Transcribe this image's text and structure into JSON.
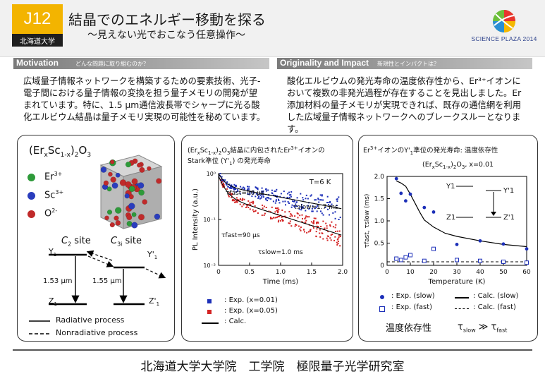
{
  "header": {
    "code": "J12",
    "org": "北海道大学",
    "title": "結晶でのエネルギー移動を探る",
    "subtitle": "〜見えない光でおこなう任意操作〜",
    "logo_text": "SCIENCE PLAZA 2014"
  },
  "motivation": {
    "title": "Motivation",
    "subtitle": "どんな問題に取り組むのか？",
    "lines": [
      "広域量子情報ネットワークを構築するための要素技術、光子-",
      "電子間における量子情報の変換を担う量子メモリの開発が望",
      "まれています。特に、1.5 µm通信波長帯でシャープに光る酸",
      "化エルビウム結晶は量子メモリ実現の可能性を秘めています。"
    ]
  },
  "originality": {
    "title": "Originality and Impact",
    "subtitle": "新規性とインパクトは？",
    "lines": [
      "酸化エルビウムの発光寿命の温度依存性から、Er³⁺イオンに",
      "おいて複数の非発光過程が存在することを見出しました。Er",
      "添加材料の量子メモリが実現できれば、既存の通信網を利用",
      "した広域量子情報ネットワークへのブレークスルーとなります。"
    ]
  },
  "panel1": {
    "formula": "(ErxSc1-x)2O3",
    "legend": [
      {
        "label": "Er3+",
        "color": "#2e9a3a"
      },
      {
        "label": "Sc3+",
        "color": "#2a3dbd"
      },
      {
        "label": "O2-",
        "color": "#c02a2a"
      }
    ],
    "site_c2": "C2 site",
    "site_c3i": "C3i site",
    "y1": "Y1",
    "z1": "Z1",
    "y1p": "Y'1",
    "z1p": "Z'1",
    "wl1": "1.53 µm",
    "wl2": "1.55 µm",
    "radiative": "Radiative process",
    "nonradiative": "Nonradiative process"
  },
  "panel2": {
    "title_line1": "(ErxSc1-x)2O3結晶に内包されたEr3+イオンの",
    "title_line2": "Stark準位 (Y'1) の発光寿命",
    "temp": "T=6 K",
    "tau_fast_1": "τfast=90 µs",
    "tau_slow_1": "τslow=1.7 ms",
    "tau_fast_2": "τfast=90 µs",
    "tau_slow_2": "τslow=1.0 ms",
    "legend": [
      "Exp. (x=0.01)",
      "Exp. (x=0.05)",
      "Calc."
    ]
  },
  "panel3": {
    "title": "Er3+イオンのY'1準位の発光寿命: 温度依存性",
    "sample": "(ErxSc1-x)2O3, x=0.01",
    "legend": [
      "Exp. (slow)",
      "Exp. (fast)",
      "Calc. (slow)",
      "Calc. (fast)"
    ],
    "bottom_text": "温度依存性",
    "bottom_rel": "τslow ≫ τfast",
    "y1": "Y1",
    "z1": "Z1",
    "y1p": "Y'1",
    "z1p": "Z'1"
  },
  "footer": "北海道大学大学院　工学院　極限量子光学研究室",
  "chart_data": [
    {
      "type": "scatter",
      "title": "(ErxSc1-x)2O3結晶に内包されたEr3+イオンのStark準位 (Y'1) の発光寿命",
      "xlabel": "Time (ms)",
      "ylabel": "PL Intensity (a.u.)",
      "xlim": [
        0,
        2.0
      ],
      "ylim": [
        0.01,
        1
      ],
      "yscale": "log",
      "xticks": [
        "0",
        "0.5",
        "1.0",
        "1.5",
        "2.0"
      ],
      "yticks": [
        "10⁻²",
        "10⁻¹",
        "10⁰"
      ],
      "series": [
        {
          "name": "Exp. (x=0.01)",
          "color": "#1c2fb8",
          "tau_fast_ms": 0.09,
          "tau_slow_ms": 1.7,
          "fast_amp": 0.45,
          "slow_amp": 0.55
        },
        {
          "name": "Exp. (x=0.05)",
          "color": "#d42424",
          "tau_fast_ms": 0.09,
          "tau_slow_ms": 1.0,
          "fast_amp": 0.55,
          "slow_amp": 0.33
        },
        {
          "name": "Calc.",
          "color": "#000000"
        }
      ]
    },
    {
      "type": "scatter",
      "title": "(ErxSc1-x)2O3, x=0.01",
      "xlabel": "Temperature (K)",
      "ylabel": "τfast, τslow (ms)",
      "xlim": [
        0,
        60
      ],
      "ylim": [
        0,
        2.0
      ],
      "xticks": [
        "0",
        "10",
        "20",
        "30",
        "40",
        "50",
        "60"
      ],
      "yticks": [
        "0",
        "0.5",
        "1.0",
        "1.5",
        "2.0"
      ],
      "series": [
        {
          "name": "Exp. (slow)",
          "color": "#1c2fb8",
          "x": [
            4,
            6,
            8,
            10,
            16,
            20,
            30,
            40,
            50,
            60
          ],
          "y": [
            1.95,
            1.62,
            1.45,
            1.6,
            1.3,
            1.2,
            0.47,
            0.55,
            0.48,
            0.37
          ]
        },
        {
          "name": "Exp. (fast)",
          "color": "#1c2fb8",
          "x": [
            4,
            6,
            8,
            10,
            16,
            20,
            30,
            40,
            50,
            60
          ],
          "y": [
            0.15,
            0.12,
            0.18,
            0.23,
            0.1,
            0.37,
            0.12,
            0.1,
            0.08,
            0.06
          ]
        },
        {
          "name": "Calc. (slow)",
          "color": "#000000",
          "x": [
            4,
            6,
            8,
            10,
            12,
            14,
            16,
            20,
            25,
            30,
            40,
            50,
            60
          ],
          "y": [
            1.9,
            1.85,
            1.78,
            1.6,
            1.4,
            1.2,
            1.02,
            0.86,
            0.72,
            0.65,
            0.55,
            0.47,
            0.42
          ]
        },
        {
          "name": "Calc. (fast)",
          "color": "#000000",
          "x": [
            0,
            60
          ],
          "y": [
            0.08,
            0.08
          ]
        }
      ]
    }
  ]
}
